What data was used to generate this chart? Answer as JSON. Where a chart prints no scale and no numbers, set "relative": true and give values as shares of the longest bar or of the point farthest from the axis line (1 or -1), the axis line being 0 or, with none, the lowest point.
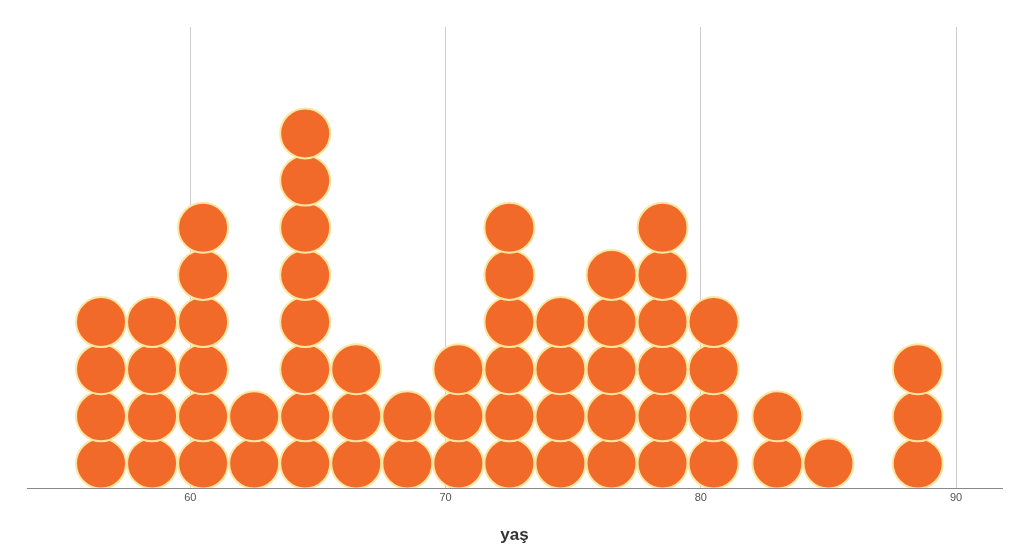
{
  "chart_data": {
    "type": "scatter",
    "xlabel": "yaş",
    "relative": true,
    "x": [
      56.5,
      56.5,
      56.5,
      56.5,
      58.5,
      58.5,
      58.5,
      58.5,
      60.5,
      60.5,
      60.5,
      60.5,
      60.5,
      60.5,
      62.5,
      62.5,
      64.5,
      64.5,
      64.5,
      64.5,
      64.5,
      64.5,
      64.5,
      64.5,
      66.5,
      66.5,
      66.5,
      68.5,
      68.5,
      70.5,
      70.5,
      70.5,
      72.5,
      72.5,
      72.5,
      72.5,
      72.5,
      72.5,
      74.5,
      74.5,
      74.5,
      74.5,
      76.5,
      76.5,
      76.5,
      76.5,
      76.5,
      78.5,
      78.5,
      78.5,
      78.5,
      78.5,
      78.5,
      80.5,
      80.5,
      80.5,
      80.5,
      83,
      83,
      85,
      88.5,
      88.5,
      88.5
    ],
    "values": [
      0.069,
      0.202,
      0.335,
      0.468,
      0.069,
      0.202,
      0.335,
      0.468,
      0.069,
      0.202,
      0.335,
      0.468,
      0.601,
      0.734,
      0.069,
      0.202,
      0.069,
      0.202,
      0.335,
      0.468,
      0.601,
      0.734,
      0.867,
      1,
      0.069,
      0.202,
      0.335,
      0.069,
      0.202,
      0.069,
      0.202,
      0.335,
      0.069,
      0.202,
      0.335,
      0.468,
      0.601,
      0.734,
      0.069,
      0.202,
      0.335,
      0.468,
      0.069,
      0.202,
      0.335,
      0.468,
      0.601,
      0.069,
      0.202,
      0.335,
      0.468,
      0.601,
      0.734,
      0.069,
      0.202,
      0.335,
      0.468,
      0.069,
      0.202,
      0.069,
      0.069,
      0.202,
      0.335
    ],
    "color": "#f26a2a",
    "marker": "circle",
    "xlim": [
      53.6,
      91.8
    ],
    "xticks": [
      60,
      70,
      80,
      90
    ],
    "tick_labels": "x",
    "grid": "x"
  }
}
